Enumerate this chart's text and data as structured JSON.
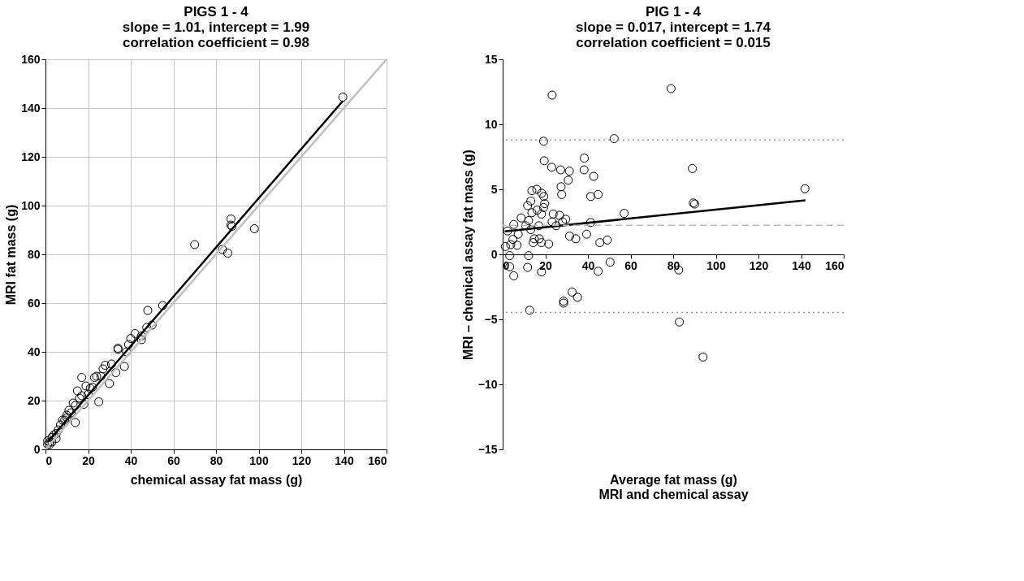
{
  "chart_data": [
    {
      "type": "scatter",
      "title": "PIGS 1 - 4\nslope = 1.01, intercept = 1.99\ncorrelation coefficient = 0.98",
      "xlabel": "chemical assay fat mass (g)",
      "ylabel": "MRI fat mass (g)",
      "xlim": [
        0,
        160
      ],
      "ylim": [
        0,
        160
      ],
      "xticks": [
        0,
        20,
        40,
        60,
        80,
        100,
        120,
        140,
        160
      ],
      "yticks": [
        0,
        20,
        40,
        60,
        80,
        100,
        120,
        140,
        160
      ],
      "grid": true,
      "series": [
        {
          "marker": "circle",
          "color": "#000000",
          "x": [
            139.5,
            98,
            87,
            87,
            87.5,
            85.5,
            83,
            70,
            55,
            50,
            48,
            47.5,
            45,
            45,
            42,
            40,
            39,
            37,
            38,
            34,
            34,
            33,
            31,
            30,
            28,
            27,
            26,
            24,
            25,
            23,
            22,
            21,
            20,
            19,
            18,
            17,
            17,
            16,
            15,
            14,
            14,
            13,
            12,
            11,
            10,
            10,
            9,
            8,
            7,
            6,
            5,
            5,
            4,
            3,
            3,
            2,
            1,
            1,
            2
          ],
          "values": [
            144.5,
            90.5,
            94.5,
            92,
            91.5,
            80.5,
            82,
            84,
            59,
            51,
            57,
            50,
            45,
            46.5,
            47.5,
            45.5,
            43,
            34,
            40,
            41.5,
            41,
            31.5,
            35,
            27,
            34.5,
            33,
            30,
            30,
            19.5,
            29.5,
            25.5,
            25,
            22.5,
            26,
            18.5,
            29.5,
            22,
            21,
            24,
            18,
            11,
            19,
            15,
            16,
            13,
            14,
            12,
            12,
            10,
            8,
            6.5,
            4.5,
            6,
            5,
            3,
            3,
            2,
            3.5,
            2
          ]
        },
        {
          "type": "line",
          "marker": "none",
          "line_style": "solid",
          "color": "#000000",
          "x": [
            1,
            139.5
          ],
          "values": [
            3.0,
            142.9
          ]
        },
        {
          "type": "line",
          "marker": "none",
          "line_style": "solid",
          "color": "#c0c0c0",
          "x": [
            0,
            160
          ],
          "values": [
            0,
            160
          ]
        }
      ]
    },
    {
      "type": "scatter",
      "title": "PIG 1 - 4\nslope = 0.017, intercept = 1.74\ncorrelation coefficient = 0.015",
      "xlabel": "Average fat mass (g)\nMRI and chemical assay",
      "ylabel": "MRI – chemical assay fat mass (g)",
      "xlim": [
        0,
        160
      ],
      "ylim": [
        -15,
        15
      ],
      "xticks": [
        0,
        20,
        40,
        60,
        80,
        100,
        120,
        140,
        160
      ],
      "yticks": [
        -15,
        -10,
        -5,
        0,
        5,
        10,
        15
      ],
      "grid": false,
      "series": [
        {
          "marker": "circle",
          "color": "#000000",
          "x": [
            23.2,
            19.2,
            52.3,
            19.5,
            23,
            27.2,
            31.3,
            38.3,
            38.2,
            30.8,
            27.4,
            27.7,
            42.7,
            41.3,
            44.8,
            13.7,
            16,
            18.3,
            19.3,
            13.2,
            11.7,
            19.7,
            19.2,
            18.2,
            16.2,
            13.7,
            23.7,
            26.7,
            29.6,
            23.2,
            25.1,
            28.1,
            8.7,
            12.2,
            10.8,
            13.2,
            17,
            5.2,
            2.3,
            41.3,
            14.8,
            17.2,
            14.3,
            18.2,
            21.6,
            31.4,
            34.3,
            39.4,
            45.6,
            49.1,
            7.3,
            4.8,
            6.8,
            3.8,
            1.3,
            3.3,
            12.2,
            3.3,
            11.7,
            5.2,
            18.2,
            44.8,
            50.4,
            32.6,
            35.1,
            28.6,
            28.6,
            12.7,
            79,
            89,
            141.8,
            89.4,
            90.1,
            57,
            82.9,
            94,
            82.6
          ],
          "values": [
            12.25,
            8.7,
            8.9,
            7.2,
            6.7,
            6.5,
            6.4,
            7.4,
            6.5,
            5.7,
            5.2,
            4.6,
            6.0,
            4.45,
            4.6,
            4.9,
            5.0,
            4.7,
            4.45,
            4.1,
            3.75,
            3.9,
            3.6,
            3.1,
            3.4,
            3.2,
            3.1,
            3.0,
            2.7,
            2.5,
            2.2,
            2.5,
            2.8,
            2.6,
            2.2,
            1.9,
            2.2,
            2.3,
            1.8,
            2.45,
            1.2,
            1.2,
            0.9,
            0.9,
            0.8,
            1.4,
            1.2,
            1.55,
            0.9,
            1.1,
            1.55,
            1.15,
            0.7,
            0.75,
            0.6,
            -0.1,
            -0.1,
            -0.95,
            -1.0,
            -1.65,
            -1.35,
            -1.3,
            -0.6,
            -2.9,
            -3.3,
            -3.6,
            -3.75,
            -4.3,
            12.75,
            6.6,
            5.05,
            3.95,
            3.87,
            3.15,
            -5.2,
            -7.9,
            -1.2
          ]
        },
        {
          "type": "line",
          "marker": "none",
          "line_style": "solid",
          "color": "#000000",
          "x": [
            1,
            142
          ],
          "values": [
            1.76,
            4.15
          ]
        }
      ],
      "ref_lines": [
        {
          "axis": "y",
          "value": 8.8,
          "color": "#999999",
          "line_style": "dotted"
        },
        {
          "axis": "y",
          "value": 2.23,
          "color": "#bbbbbb",
          "line_style": "dashed"
        },
        {
          "axis": "y",
          "value": -4.47,
          "color": "#999999",
          "line_style": "dotted"
        }
      ]
    }
  ]
}
